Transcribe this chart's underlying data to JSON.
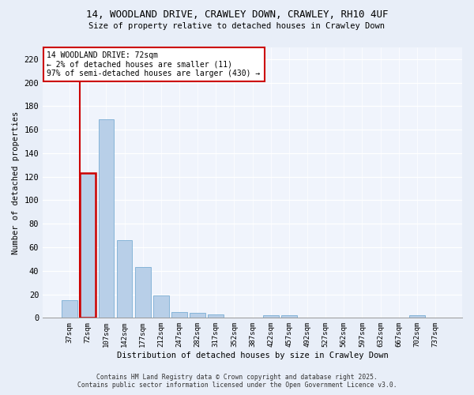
{
  "title_line1": "14, WOODLAND DRIVE, CRAWLEY DOWN, CRAWLEY, RH10 4UF",
  "title_line2": "Size of property relative to detached houses in Crawley Down",
  "xlabel": "Distribution of detached houses by size in Crawley Down",
  "ylabel": "Number of detached properties",
  "bar_labels": [
    "37sqm",
    "72sqm",
    "107sqm",
    "142sqm",
    "177sqm",
    "212sqm",
    "247sqm",
    "282sqm",
    "317sqm",
    "352sqm",
    "387sqm",
    "422sqm",
    "457sqm",
    "492sqm",
    "527sqm",
    "562sqm",
    "597sqm",
    "632sqm",
    "667sqm",
    "702sqm",
    "737sqm"
  ],
  "bar_values": [
    15,
    123,
    169,
    66,
    43,
    19,
    5,
    4,
    3,
    0,
    0,
    2,
    2,
    0,
    0,
    0,
    0,
    0,
    0,
    2,
    0
  ],
  "highlight_bar_index": 1,
  "highlight_color": "#cc0000",
  "bar_color": "#b8cfe8",
  "bar_edge_color": "#7aadd4",
  "ylim": [
    0,
    230
  ],
  "yticks": [
    0,
    20,
    40,
    60,
    80,
    100,
    120,
    140,
    160,
    180,
    200,
    220
  ],
  "annotation_box_text": "14 WOODLAND DRIVE: 72sqm\n← 2% of detached houses are smaller (11)\n97% of semi-detached houses are larger (430) →",
  "footer_line1": "Contains HM Land Registry data © Crown copyright and database right 2025.",
  "footer_line2": "Contains public sector information licensed under the Open Government Licence v3.0.",
  "bg_color": "#e8eef8",
  "plot_bg_color": "#f0f4fc"
}
